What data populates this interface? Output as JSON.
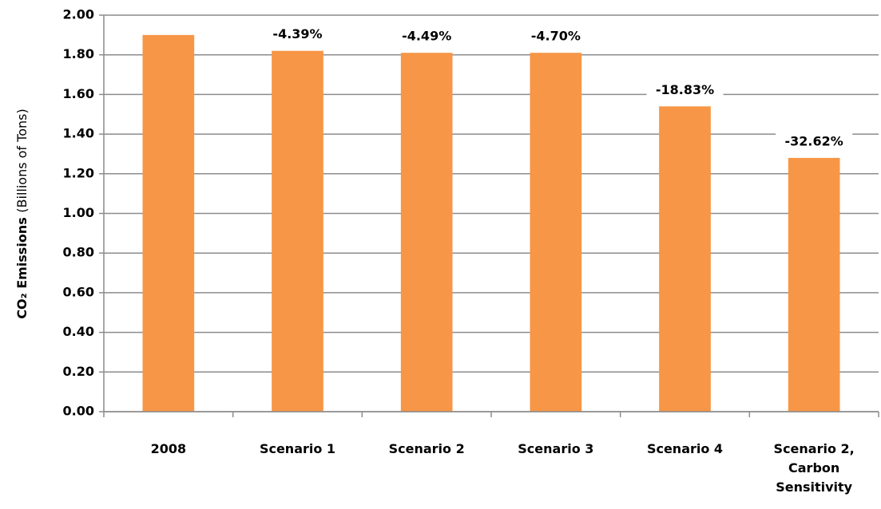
{
  "chart_data": {
    "type": "bar",
    "ylabel": [
      "CO₂ Emissions",
      "(Billions of Tons)"
    ],
    "categories": [
      "2008",
      "Scenario 1",
      "Scenario 2",
      "Scenario 3",
      "Scenario 4",
      "Scenario 2, Carbon Sensitivity"
    ],
    "values": [
      1.9,
      1.82,
      1.81,
      1.81,
      1.54,
      1.28
    ],
    "annotations": [
      null,
      "-4.39%",
      "-4.49%",
      "-4.70%",
      "-18.83%",
      "-32.62%"
    ],
    "color": "#f79646",
    "ylim": [
      0,
      2
    ],
    "yticks": [
      {
        "value": 0,
        "label": "0.00"
      },
      {
        "value": 0.2,
        "label": "0.20"
      },
      {
        "value": 0.4,
        "label": "0.40"
      },
      {
        "value": 0.6,
        "label": "0.60"
      },
      {
        "value": 0.8,
        "label": "0.80"
      },
      {
        "value": 1,
        "label": "1.00"
      },
      {
        "value": 1.2,
        "label": "1.20"
      },
      {
        "value": 1.4,
        "label": "1.40"
      },
      {
        "value": 1.6,
        "label": "1.60"
      },
      {
        "value": 1.8,
        "label": "1.80"
      },
      {
        "value": 2,
        "label": "2.00"
      }
    ],
    "grid": true
  }
}
